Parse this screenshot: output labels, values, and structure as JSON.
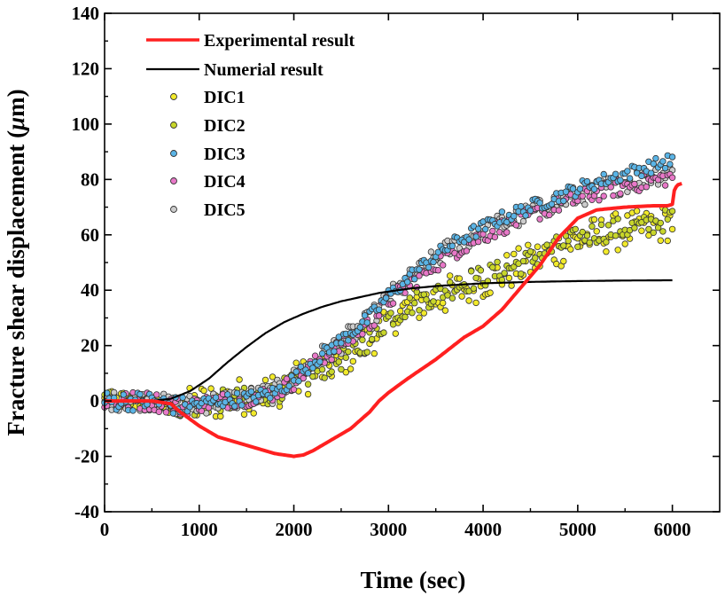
{
  "chart_data": {
    "type": "line",
    "title": "",
    "xlabel": "Time (sec)",
    "ylabel_main": "Fracture shear displacement (",
    "ylabel_unit": "μ",
    "ylabel_tail": "m)",
    "xlim": [
      0,
      6500
    ],
    "ylim": [
      -40,
      140
    ],
    "xticks": [
      0,
      1000,
      2000,
      3000,
      4000,
      5000,
      6000
    ],
    "yticks": [
      -40,
      -20,
      0,
      20,
      40,
      60,
      80,
      100,
      120,
      140
    ],
    "legend_position": "top-left",
    "series": [
      {
        "name": "Experimental result",
        "kind": "line",
        "color": "#ff2020",
        "x": [
          0,
          500,
          700,
          800,
          1000,
          1200,
          1500,
          1800,
          2000,
          2100,
          2200,
          2400,
          2600,
          2800,
          2900,
          3000,
          3200,
          3500,
          3800,
          4000,
          4200,
          4400,
          4600,
          4800,
          5000,
          5200,
          5500,
          5800,
          5950,
          6000,
          6020,
          6050,
          6100
        ],
        "y": [
          0,
          0,
          -1,
          -4,
          -9,
          -13,
          -16,
          -19,
          -20,
          -19.5,
          -18,
          -14,
          -10,
          -4,
          0,
          3,
          8,
          15,
          23,
          27,
          33,
          41,
          49,
          59,
          66,
          69,
          70,
          70.5,
          70.5,
          71,
          76,
          78,
          78.5
        ]
      },
      {
        "name": "Numerial result",
        "kind": "line",
        "color": "#000000",
        "x": [
          0,
          500,
          700,
          900,
          1100,
          1300,
          1500,
          1700,
          1900,
          2100,
          2300,
          2500,
          2700,
          2900,
          3200,
          3500,
          4000,
          4500,
          5000,
          5500,
          6000
        ],
        "y": [
          0,
          0,
          0.8,
          3.5,
          8,
          14,
          19.5,
          24.5,
          28.5,
          31.5,
          34,
          36,
          37.5,
          39,
          40.5,
          41.5,
          42.5,
          43,
          43.3,
          43.5,
          43.6
        ]
      },
      {
        "name": "DIC1",
        "kind": "scatter",
        "color": "#f2ea2a",
        "x": [
          0,
          500,
          800,
          1000,
          1200,
          1500,
          1800,
          2000,
          2200,
          2500,
          2800,
          3000,
          3300,
          3600,
          3900,
          4200,
          4500,
          4800,
          5100,
          5400,
          5700,
          6000
        ],
        "y": [
          0,
          0,
          -3,
          -1,
          0,
          2,
          4,
          7,
          10,
          15,
          22,
          30,
          35,
          38,
          42,
          46,
          50,
          55,
          59,
          61,
          62,
          65
        ]
      },
      {
        "name": "DIC2",
        "kind": "scatter",
        "color": "#c8d62a",
        "x": [
          0,
          500,
          800,
          1000,
          1200,
          1500,
          1800,
          2000,
          2200,
          2500,
          2800,
          3000,
          3300,
          3600,
          3900,
          4200,
          4500,
          4800,
          5100,
          5400,
          5700,
          6000
        ],
        "y": [
          0,
          0,
          -2,
          -2,
          0,
          1,
          3,
          6,
          10,
          15,
          22,
          30,
          36,
          40,
          44,
          47,
          51,
          56,
          60,
          62,
          63,
          66
        ]
      },
      {
        "name": "DIC3",
        "kind": "scatter",
        "color": "#5ab4e6",
        "x": [
          0,
          500,
          800,
          1000,
          1200,
          1500,
          1800,
          2000,
          2200,
          2500,
          2800,
          3000,
          3300,
          3600,
          3900,
          4200,
          4500,
          4800,
          5100,
          5400,
          5700,
          6000
        ],
        "y": [
          0,
          0,
          -2,
          -1,
          0,
          1,
          3,
          8,
          14,
          22,
          30,
          38,
          47,
          55,
          61,
          66,
          70,
          74,
          78,
          81,
          84,
          87
        ]
      },
      {
        "name": "DIC4",
        "kind": "scatter",
        "color": "#e878c8",
        "x": [
          0,
          500,
          800,
          1000,
          1200,
          1500,
          1800,
          2000,
          2200,
          2500,
          2800,
          3000,
          3300,
          3600,
          3900,
          4200,
          4500,
          4800,
          5100,
          5400,
          5700,
          6000
        ],
        "y": [
          0,
          0,
          -2,
          -1,
          0,
          1,
          3,
          7,
          13,
          20,
          28,
          36,
          44,
          52,
          58,
          63,
          67,
          71,
          74,
          77,
          79,
          81
        ]
      },
      {
        "name": "DIC5",
        "kind": "scatter",
        "color": "#cccccc",
        "x": [
          0,
          500,
          800,
          1000,
          1200,
          1500,
          1800,
          2000,
          2200,
          2500,
          2800,
          3000,
          3300,
          3600,
          3900,
          4200,
          4500,
          4800,
          5100,
          5400,
          5700,
          6000
        ],
        "y": [
          0,
          0,
          -2,
          -1,
          0,
          1,
          3,
          8,
          14,
          21,
          29,
          37,
          46,
          54,
          60,
          64,
          68,
          72,
          75,
          78,
          81,
          83
        ]
      }
    ]
  }
}
